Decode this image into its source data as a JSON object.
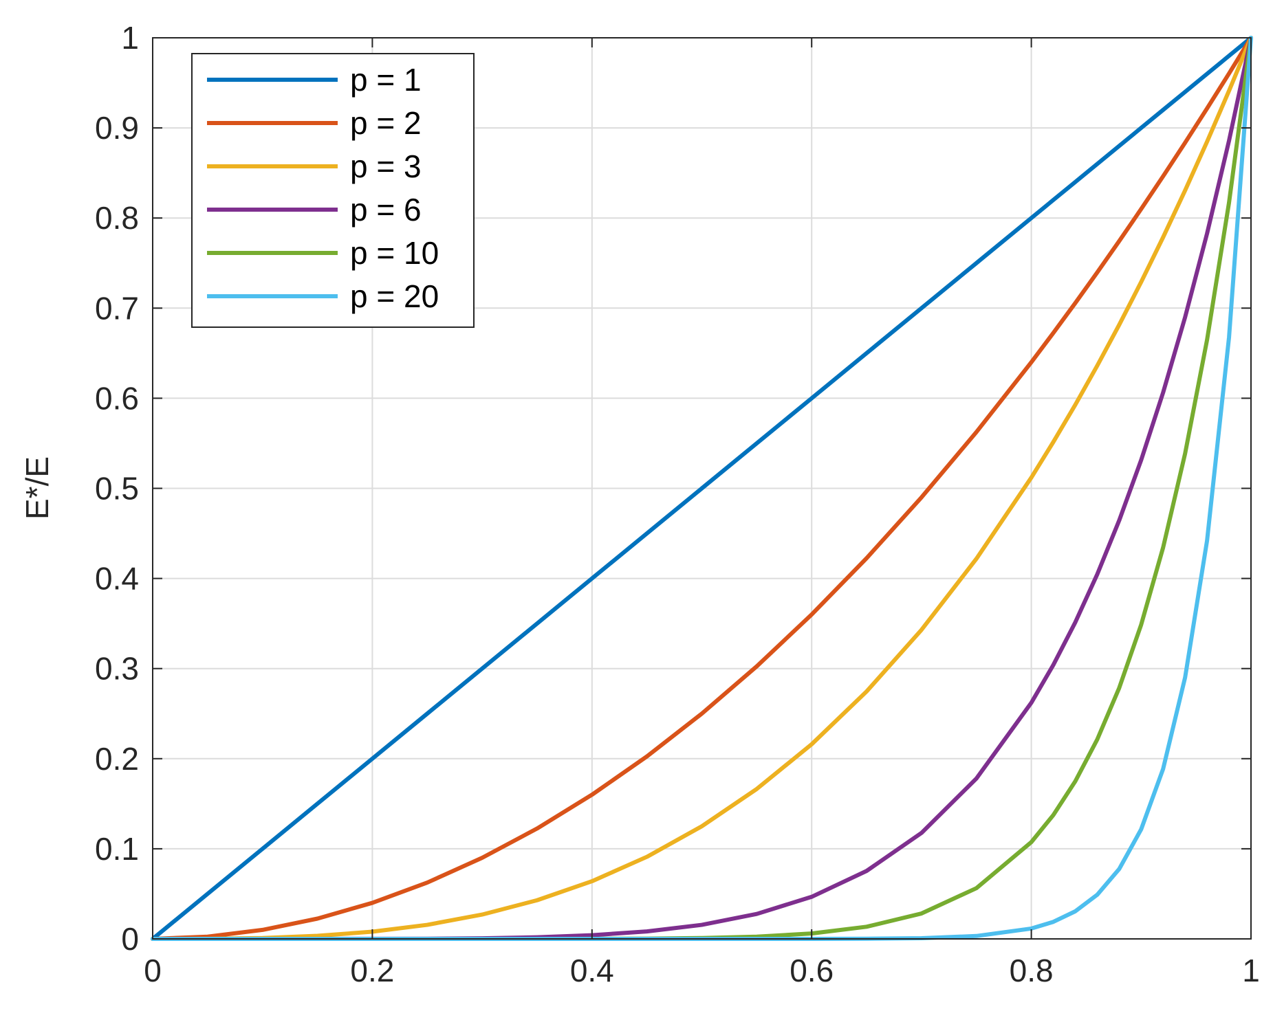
{
  "chart_data": {
    "type": "line",
    "title": "",
    "xlabel": "",
    "ylabel": "E*/E",
    "xlim": [
      0,
      1
    ],
    "ylim": [
      0,
      1
    ],
    "x_ticks": [
      0,
      0.2,
      0.4,
      0.6,
      0.8,
      1
    ],
    "x_tick_labels": [
      "0",
      "0.2",
      "0.4",
      "0.6",
      "0.8",
      "1"
    ],
    "y_ticks": [
      0,
      0.1,
      0.2,
      0.3,
      0.4,
      0.5,
      0.6,
      0.7,
      0.8,
      0.9,
      1
    ],
    "y_tick_labels": [
      "0",
      "0.1",
      "0.2",
      "0.3",
      "0.4",
      "0.5",
      "0.6",
      "0.7",
      "0.8",
      "0.9",
      "1"
    ],
    "grid": true,
    "legend_position": "top-left",
    "x": [
      0,
      0.05,
      0.1,
      0.15,
      0.2,
      0.25,
      0.3,
      0.35,
      0.4,
      0.45,
      0.5,
      0.55,
      0.6,
      0.65,
      0.7,
      0.75,
      0.8,
      0.82,
      0.84,
      0.86,
      0.88,
      0.9,
      0.92,
      0.94,
      0.96,
      0.98,
      1
    ],
    "series": [
      {
        "name": "p = 1",
        "color": "#0072BD",
        "values": [
          0,
          0.05,
          0.1,
          0.15,
          0.2,
          0.25,
          0.3,
          0.35,
          0.4,
          0.45,
          0.5,
          0.55,
          0.6,
          0.65,
          0.7,
          0.75,
          0.8,
          0.82,
          0.84,
          0.86,
          0.88,
          0.9,
          0.92,
          0.94,
          0.96,
          0.98,
          1
        ]
      },
      {
        "name": "p = 2",
        "color": "#D95319",
        "values": [
          0,
          0.0025,
          0.01,
          0.0225,
          0.04,
          0.0625,
          0.09,
          0.1225,
          0.16,
          0.2025,
          0.25,
          0.3025,
          0.36,
          0.4225,
          0.49,
          0.5625,
          0.64,
          0.6724,
          0.7056,
          0.7396,
          0.7744,
          0.81,
          0.8464,
          0.8836,
          0.9216,
          0.9604,
          1
        ]
      },
      {
        "name": "p = 3",
        "color": "#EDB120",
        "values": [
          0,
          0.0001,
          0.001,
          0.0034,
          0.008,
          0.0156,
          0.027,
          0.0429,
          0.064,
          0.0911,
          0.125,
          0.1664,
          0.216,
          0.2746,
          0.343,
          0.4219,
          0.512,
          0.5514,
          0.5927,
          0.6361,
          0.6815,
          0.729,
          0.7787,
          0.8306,
          0.8847,
          0.9412,
          1
        ]
      },
      {
        "name": "p = 6",
        "color": "#7E2F8E",
        "values": [
          0,
          0,
          0,
          0,
          0.0001,
          0.0002,
          0.0007,
          0.0018,
          0.0041,
          0.0083,
          0.0156,
          0.0277,
          0.0467,
          0.0754,
          0.1176,
          0.178,
          0.2621,
          0.304,
          0.3513,
          0.4046,
          0.4644,
          0.5314,
          0.6064,
          0.6899,
          0.7828,
          0.8858,
          1
        ]
      },
      {
        "name": "p = 10",
        "color": "#77AC30",
        "values": [
          0,
          0,
          0,
          0,
          0,
          0,
          0,
          0,
          0.0001,
          0.0003,
          0.001,
          0.0025,
          0.006,
          0.0135,
          0.0282,
          0.0563,
          0.1074,
          0.1374,
          0.1749,
          0.2213,
          0.2785,
          0.3487,
          0.4344,
          0.5386,
          0.6648,
          0.8171,
          1
        ]
      },
      {
        "name": "p = 20",
        "color": "#4DBEEE",
        "values": [
          0,
          0,
          0,
          0,
          0,
          0,
          0,
          0,
          0,
          0,
          0,
          0,
          0,
          0.0002,
          0.0008,
          0.0032,
          0.0115,
          0.0189,
          0.0306,
          0.049,
          0.0776,
          0.1216,
          0.1887,
          0.2901,
          0.442,
          0.6676,
          1
        ]
      }
    ]
  }
}
